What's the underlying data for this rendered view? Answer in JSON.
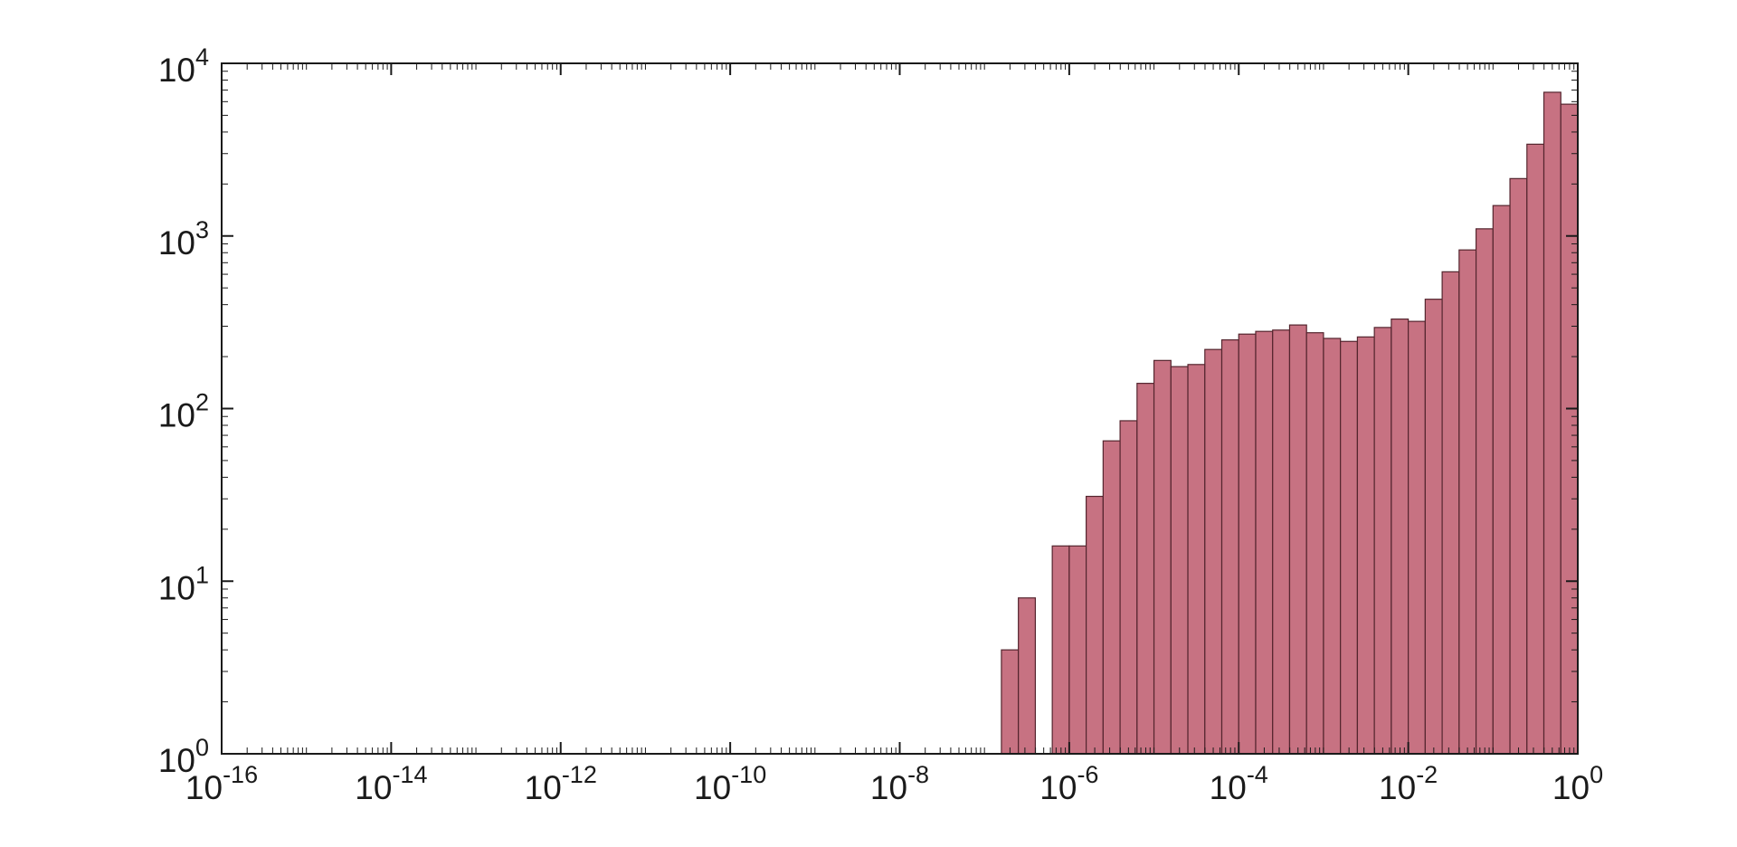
{
  "figure": {
    "background": "#ffffff"
  },
  "chart_data": {
    "type": "bar",
    "subtype": "histogram-log-log",
    "title": "",
    "xlabel": "",
    "ylabel": "",
    "grid": false,
    "legend": "none",
    "x_scale": "log",
    "y_scale": "log",
    "xlim": [
      1e-16,
      1
    ],
    "ylim": [
      1,
      10000
    ],
    "tick_base": "10",
    "x_tick_exponents": [
      -16,
      -14,
      -12,
      -10,
      -8,
      -6,
      -4,
      -2,
      0
    ],
    "y_tick_exponents": [
      0,
      1,
      2,
      3,
      4
    ],
    "axis_color": "#1a1a1a",
    "bar_fill": "#c77282",
    "bar_edge": "#54252e",
    "bins_log10_start": -6.8,
    "bin_width_log10": 0.2,
    "counts": [
      4,
      8,
      0,
      16,
      16,
      31,
      65,
      85,
      140,
      190,
      175,
      180,
      220,
      250,
      270,
      280,
      285,
      305,
      275,
      255,
      245,
      260,
      295,
      330,
      320,
      430,
      620,
      830,
      1100,
      1500,
      2150,
      3400,
      6800,
      5800
    ]
  }
}
